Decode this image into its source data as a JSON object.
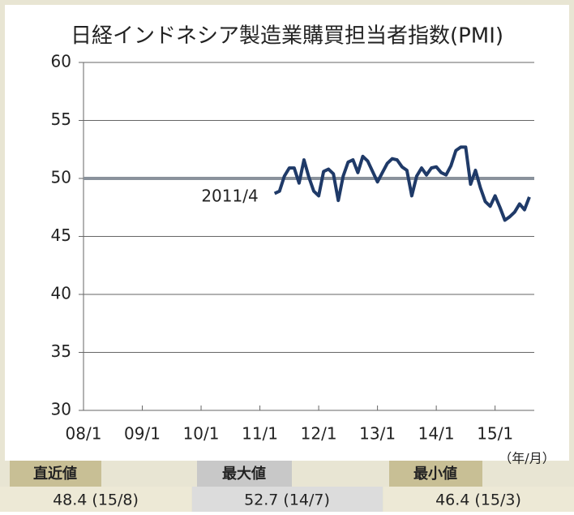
{
  "chart_data": {
    "type": "line",
    "title": "日経インドネシア製造業購買担当者指数(PMI)",
    "x": [
      "11/4",
      "11/5",
      "11/6",
      "11/7",
      "11/8",
      "11/9",
      "11/10",
      "11/11",
      "11/12",
      "12/1",
      "12/2",
      "12/3",
      "12/4",
      "12/5",
      "12/6",
      "12/7",
      "12/8",
      "12/9",
      "12/10",
      "12/11",
      "12/12",
      "13/1",
      "13/2",
      "13/3",
      "13/4",
      "13/5",
      "13/6",
      "13/7",
      "13/8",
      "13/9",
      "13/10",
      "13/11",
      "13/12",
      "14/1",
      "14/2",
      "14/3",
      "14/4",
      "14/5",
      "14/6",
      "14/7",
      "14/8",
      "14/9",
      "14/10",
      "14/11",
      "14/12",
      "15/1",
      "15/2",
      "15/3",
      "15/4",
      "15/5",
      "15/6",
      "15/7",
      "15/8"
    ],
    "series": [
      {
        "name": "PMI",
        "color": "#1f3a68",
        "values": [
          48.7,
          48.9,
          50.2,
          50.9,
          50.9,
          49.6,
          51.6,
          50.1,
          48.9,
          48.5,
          50.6,
          50.8,
          50.4,
          48.1,
          50.2,
          51.4,
          51.6,
          50.5,
          51.9,
          51.5,
          50.6,
          49.7,
          50.5,
          51.3,
          51.7,
          51.6,
          51.0,
          50.7,
          48.5,
          50.2,
          50.9,
          50.3,
          50.9,
          51.0,
          50.5,
          50.3,
          51.1,
          52.4,
          52.7,
          52.7,
          49.5,
          50.7,
          49.2,
          48.0,
          47.6,
          48.5,
          47.5,
          46.4,
          46.7,
          47.1,
          47.8,
          47.3,
          48.4
        ]
      }
    ],
    "xlim": [
      "08/1",
      "15/9"
    ],
    "xticks": [
      "08/1",
      "09/1",
      "10/1",
      "11/1",
      "12/1",
      "13/1",
      "14/1",
      "15/1"
    ],
    "x_unit": "（年/月）",
    "ylim": [
      30,
      60
    ],
    "yticks": [
      30,
      35,
      40,
      45,
      50,
      55,
      60
    ],
    "grid": true,
    "reference_line": {
      "value": 50,
      "color": "#8a929c",
      "label": "2011/4"
    }
  },
  "summary": [
    {
      "label": "直近値",
      "value": "48.4 (15/8)"
    },
    {
      "label": "最大値",
      "value": "52.7 (14/7)"
    },
    {
      "label": "最小値",
      "value": "46.4 (15/3)"
    }
  ]
}
